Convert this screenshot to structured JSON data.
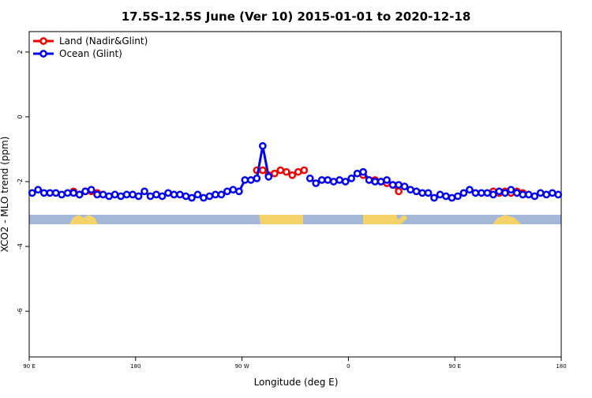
{
  "chart_data": {
    "type": "line",
    "title": "17.5S-12.5S June (Ver 10)   2015-01-01 to 2020-12-18",
    "x_label": "Longitude (deg E)",
    "y_label": "XCO2 - MLO trend (ppm)",
    "xlim": [
      90,
      540
    ],
    "ylim": [
      -7.41,
      2.63
    ],
    "xticks": [
      {
        "value": 90,
        "label": "90 E"
      },
      180,
      {
        "value": 270,
        "label": "90 W"
      },
      {
        "value": 360,
        "label": "0"
      },
      {
        "value": 450,
        "label": "90 E"
      },
      {
        "value": 540,
        "label": "180"
      }
    ],
    "yticks": [
      2,
      0,
      -2,
      -4,
      -6
    ],
    "legend": "top-left",
    "x": [
      92.5,
      97.5,
      102.5,
      107.5,
      112.5,
      117.5,
      122.5,
      127.5,
      132.5,
      137.5,
      142.5,
      147.5,
      152.5,
      157.5,
      162.5,
      167.5,
      172.5,
      177.5,
      182.5,
      187.5,
      192.5,
      197.5,
      202.5,
      207.5,
      212.5,
      217.5,
      222.5,
      227.5,
      232.5,
      237.5,
      242.5,
      247.5,
      252.5,
      257.5,
      262.5,
      267.5,
      272.5,
      277.5,
      282.5,
      287.5,
      292.5,
      297.5,
      302.5,
      307.5,
      312.5,
      317.5,
      322.5,
      327.5,
      332.5,
      337.5,
      342.5,
      347.5,
      352.5,
      357.5,
      362.5,
      367.5,
      372.5,
      377.5,
      382.5,
      387.5,
      392.5,
      397.5,
      402.5,
      407.5,
      412.5,
      417.5,
      422.5,
      427.5,
      432.5,
      437.5,
      442.5,
      447.5,
      452.5,
      457.5,
      462.5,
      467.5,
      472.5,
      477.5,
      482.5,
      487.5,
      492.5,
      497.5,
      502.5,
      507.5,
      512.5,
      517.5,
      522.5,
      527.5,
      532.5,
      537.5
    ],
    "series": [
      {
        "name": "Land (Nadir&Glint)",
        "color": "#ee0000",
        "values": [
          null,
          null,
          null,
          null,
          null,
          null,
          null,
          -2.3,
          -2.4,
          -2.3,
          -2.3,
          -2.35,
          null,
          null,
          null,
          null,
          null,
          null,
          null,
          null,
          null,
          null,
          null,
          null,
          null,
          null,
          null,
          null,
          null,
          null,
          null,
          null,
          null,
          null,
          null,
          null,
          null,
          null,
          -1.65,
          -1.65,
          -1.8,
          -1.75,
          -1.65,
          -1.7,
          -1.8,
          -1.7,
          -1.65,
          null,
          null,
          null,
          null,
          null,
          null,
          null,
          null,
          null,
          -1.8,
          -1.95,
          -1.95,
          -2.0,
          -2.05,
          -2.1,
          -2.3,
          null,
          null,
          null,
          null,
          null,
          null,
          null,
          null,
          null,
          null,
          null,
          null,
          null,
          null,
          null,
          -2.3,
          -2.35,
          -2.3,
          -2.35,
          -2.3,
          -2.35,
          null,
          null,
          null,
          null,
          null,
          null
        ]
      },
      {
        "name": "Ocean (Glint)",
        "color": "#0000ee",
        "values": [
          -2.35,
          -2.25,
          -2.35,
          -2.35,
          -2.35,
          -2.4,
          -2.35,
          -2.35,
          -2.4,
          -2.3,
          -2.25,
          -2.4,
          -2.4,
          -2.45,
          -2.4,
          -2.45,
          -2.4,
          -2.4,
          -2.45,
          -2.3,
          -2.45,
          -2.4,
          -2.45,
          -2.35,
          -2.4,
          -2.4,
          -2.45,
          -2.5,
          -2.4,
          -2.5,
          -2.45,
          -2.4,
          -2.4,
          -2.3,
          -2.25,
          -2.3,
          -1.95,
          -1.95,
          -1.9,
          -0.9,
          -1.85,
          null,
          null,
          null,
          null,
          null,
          null,
          -1.9,
          -2.05,
          -1.95,
          -1.95,
          -2.0,
          -1.95,
          -2.0,
          -1.9,
          -1.75,
          -1.7,
          -1.95,
          -2.0,
          -2.0,
          -1.95,
          -2.1,
          -2.1,
          -2.15,
          -2.25,
          -2.3,
          -2.35,
          -2.35,
          -2.5,
          -2.4,
          -2.45,
          -2.5,
          -2.45,
          -2.35,
          -2.25,
          -2.35,
          -2.35,
          -2.35,
          -2.4,
          -2.3,
          -2.35,
          -2.25,
          -2.35,
          -2.4,
          -2.4,
          -2.45,
          -2.35,
          -2.4,
          -2.35,
          -2.4
        ]
      }
    ]
  }
}
